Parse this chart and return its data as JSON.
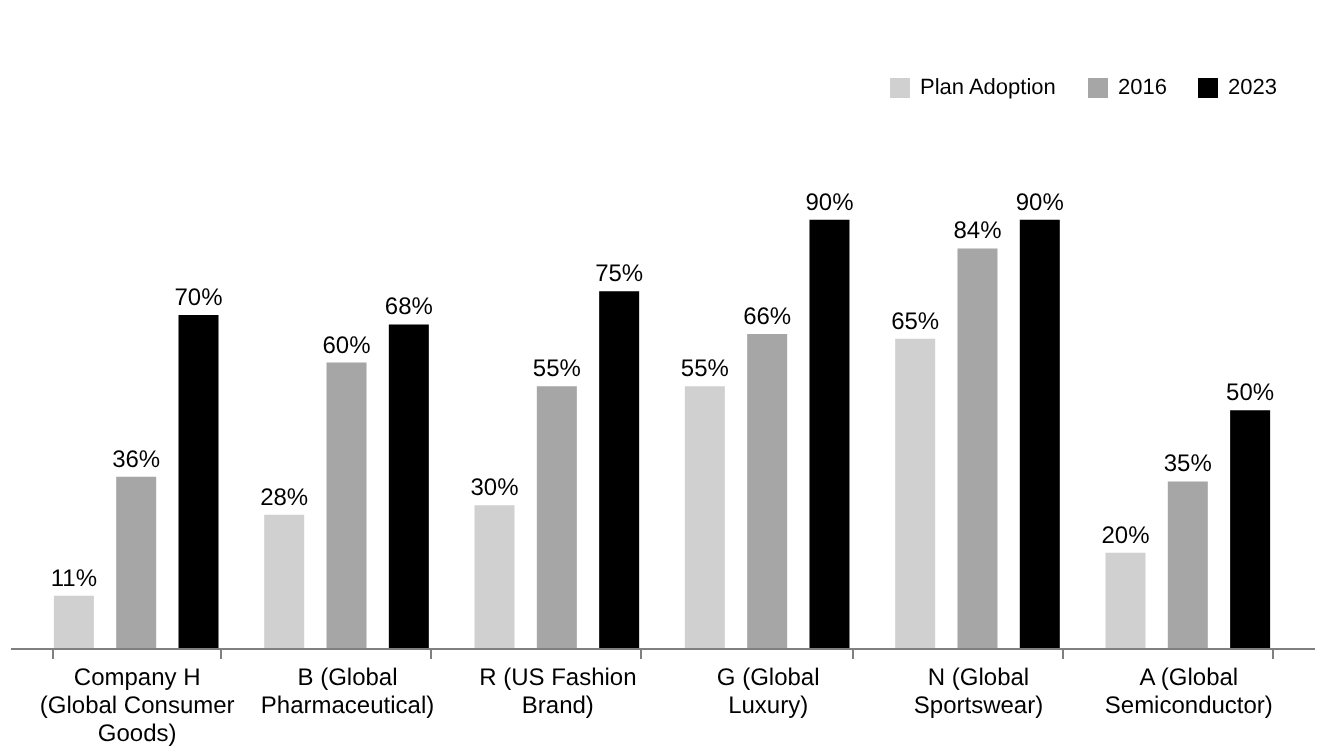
{
  "chart_data": {
    "type": "bar",
    "categories": [
      "Company H (Global Consumer Goods)",
      "B (Global Pharmaceutical)",
      "R (US Fashion Brand)",
      "G (Global Luxury)",
      "N (Global Sportswear)",
      "A (Global Semiconductor)"
    ],
    "series": [
      {
        "name": "Plan Adoption",
        "color": "#d0d0d0",
        "values": [
          11,
          28,
          30,
          55,
          65,
          20
        ],
        "value_labels": [
          "11%",
          "28%",
          "30%",
          "55%",
          "65%",
          "20%"
        ]
      },
      {
        "name": "2016",
        "color": "#a6a6a6",
        "values": [
          36,
          60,
          55,
          66,
          84,
          35
        ],
        "value_labels": [
          "36%",
          "60%",
          "55%",
          "66%",
          "84%",
          "35%"
        ]
      },
      {
        "name": "2023",
        "color": "#000000",
        "values": [
          70,
          68,
          75,
          90,
          90,
          50
        ],
        "value_labels": [
          "70%",
          "68%",
          "75%",
          "90%",
          "90%",
          "50%"
        ]
      }
    ],
    "legend": "top right"
  }
}
